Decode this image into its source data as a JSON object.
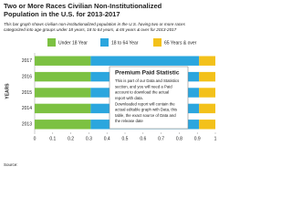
{
  "chart_data": {
    "type": "stacked-bar-horizontal",
    "title": "Two or More Races Civilian Non-Institutionalized Population in the U.S. for 2013-2017",
    "subtitle": "This bar graph shows civilian non-institutionalized population in the U.S. having two or more races categorized into age groups under 18 years, 18 to 64 years, & 65 years & over for 2013-2017",
    "y_label": "YEARS",
    "source": "Source:",
    "categories": [
      "2017",
      "2016",
      "2015",
      "2014",
      "2013"
    ],
    "series": [
      {
        "name": "Under 18 Year",
        "color": "#7cc142",
        "values": [
          0.31,
          0.31,
          0.31,
          0.31,
          0.31
        ]
      },
      {
        "name": "18 to 64 Year",
        "color": "#2ba6de",
        "values": [
          0.6,
          0.6,
          0.6,
          0.6,
          0.6
        ]
      },
      {
        "name": "65 Years & over",
        "color": "#f3c11a",
        "values": [
          0.09,
          0.09,
          0.09,
          0.09,
          0.09
        ]
      }
    ],
    "xlim": [
      0,
      1
    ],
    "xticks": [
      0,
      0.1,
      0.2,
      0.3,
      0.4,
      0.5,
      0.6,
      0.7,
      0.8,
      0.9,
      1
    ],
    "annotation": {
      "title": "Premium Paid Statistic",
      "lines": [
        "This is part of our Data and Statistics",
        "section, and you will need a Paid",
        "account to download the actual",
        "report with data.",
        "Downloaded report will contain the",
        "actual editable graph with Data, this",
        "table, the exact source of Data and",
        "the release date"
      ]
    }
  }
}
